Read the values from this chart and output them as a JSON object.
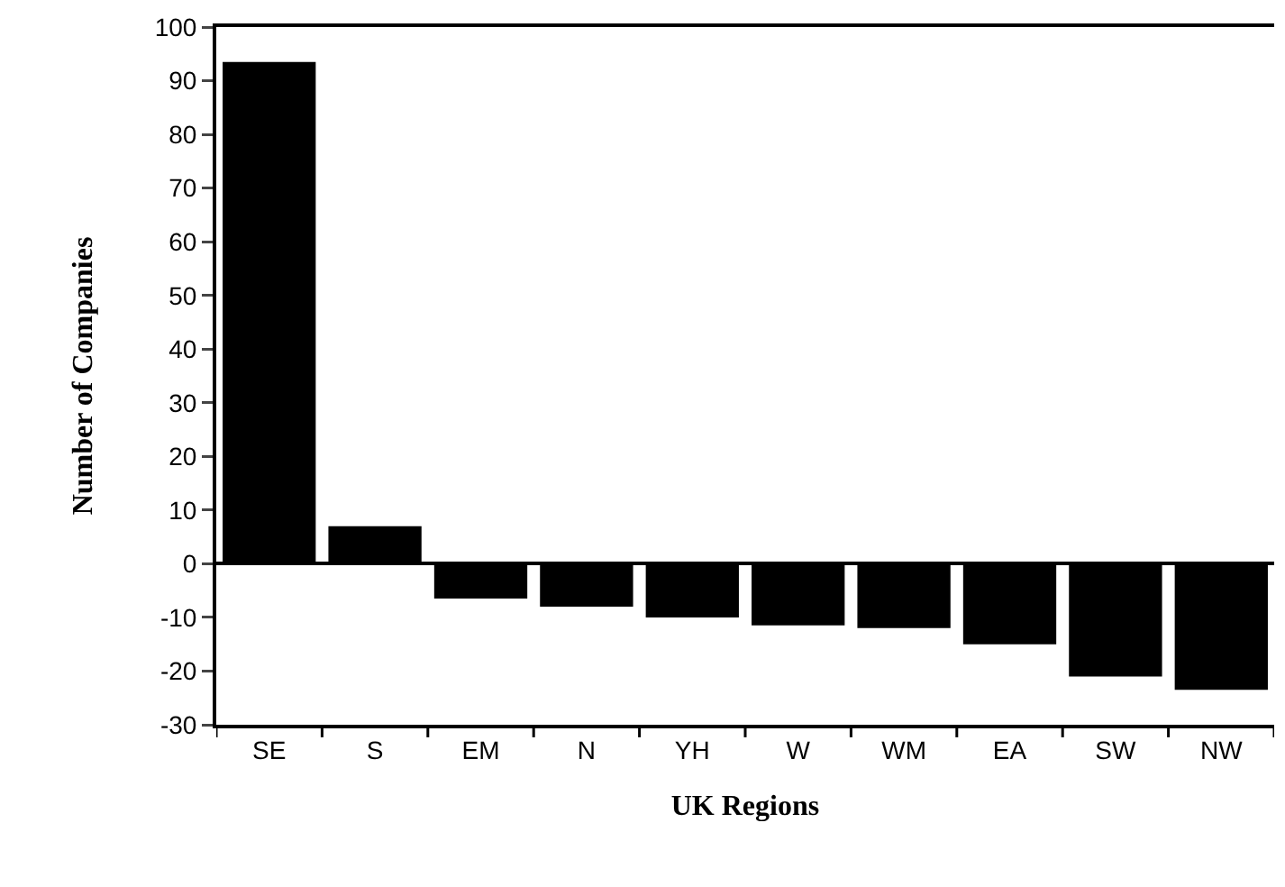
{
  "chart_data": {
    "type": "bar",
    "xlabel": "UK Regions",
    "ylabel": "Number of Companies",
    "categories": [
      "SE",
      "S",
      "EM",
      "N",
      "YH",
      "W",
      "WM",
      "EA",
      "SW",
      "NW"
    ],
    "values": [
      93.5,
      7,
      -6.5,
      -8,
      -10,
      -11.5,
      -12,
      -15,
      -21,
      -23.5
    ],
    "color": "#000000",
    "ylim": [
      -30,
      100
    ],
    "yticks": [
      -30,
      -20,
      -10,
      0,
      10,
      20,
      30,
      40,
      50,
      60,
      70,
      80,
      90,
      100
    ],
    "marker": "none"
  }
}
